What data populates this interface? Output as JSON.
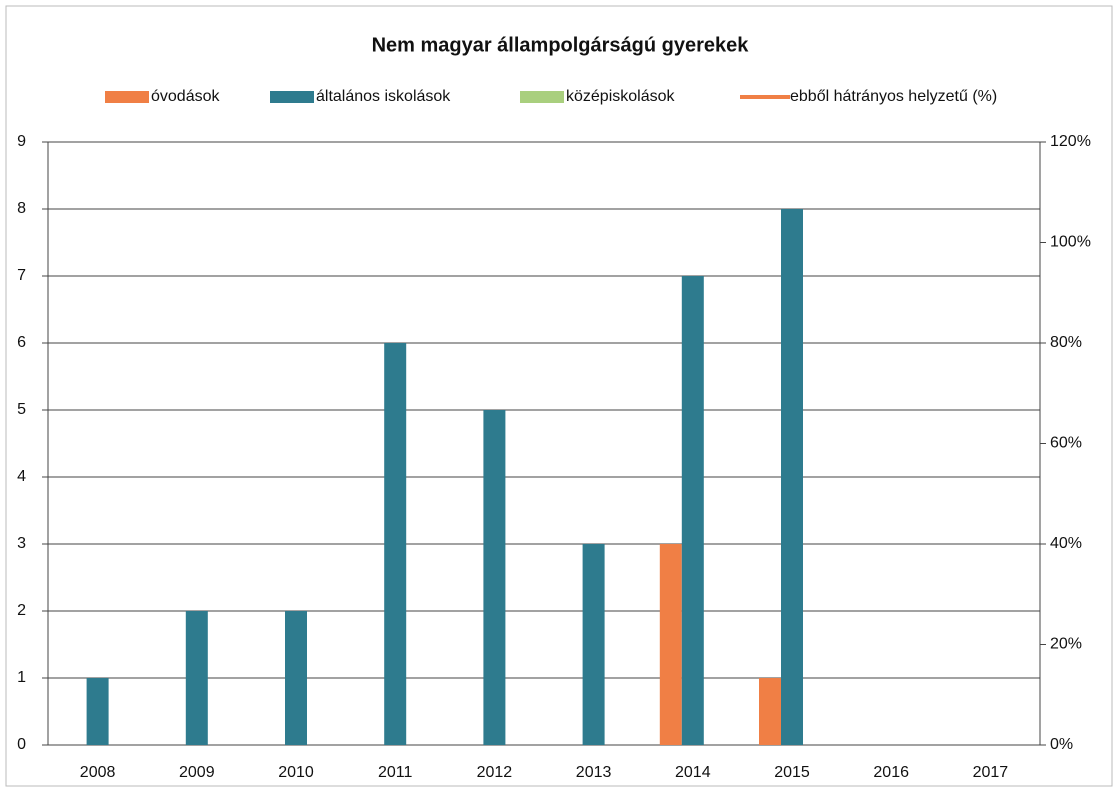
{
  "chart_data": {
    "type": "bar",
    "title": "Nem magyar állampolgárságú gyerekek",
    "categories": [
      "2008",
      "2009",
      "2010",
      "2011",
      "2012",
      "2013",
      "2014",
      "2015",
      "2016",
      "2017"
    ],
    "series": [
      {
        "name": "óvodások",
        "color": "#f07f45",
        "values": [
          null,
          null,
          null,
          null,
          null,
          null,
          3,
          1,
          null,
          null
        ]
      },
      {
        "name": "általános iskolások",
        "color": "#2e7b8e",
        "values": [
          1,
          2,
          2,
          6,
          5,
          3,
          7,
          8,
          null,
          null
        ]
      },
      {
        "name": "középiskolások",
        "color": "#a9cf7e",
        "values": [
          null,
          null,
          null,
          null,
          null,
          null,
          null,
          null,
          null,
          null
        ]
      },
      {
        "name": "ebből hátrányos helyzetű (%)",
        "color": "#f07f45",
        "type": "line",
        "axis": "y2",
        "values": [
          null,
          null,
          null,
          null,
          null,
          null,
          null,
          null,
          null,
          null
        ]
      }
    ],
    "ylim": [
      0,
      9
    ],
    "yticks": [
      0,
      1,
      2,
      3,
      4,
      5,
      6,
      7,
      8,
      9
    ],
    "y2lim": [
      0,
      120
    ],
    "y2ticks": [
      {
        "value": 0,
        "label": "0%"
      },
      {
        "value": 20,
        "label": "20%"
      },
      {
        "value": 40,
        "label": "40%"
      },
      {
        "value": 60,
        "label": "60%"
      },
      {
        "value": 80,
        "label": "80%"
      },
      {
        "value": 100,
        "label": "100%"
      },
      {
        "value": 120,
        "label": "120%"
      }
    ],
    "grid": true,
    "legend": "top"
  }
}
